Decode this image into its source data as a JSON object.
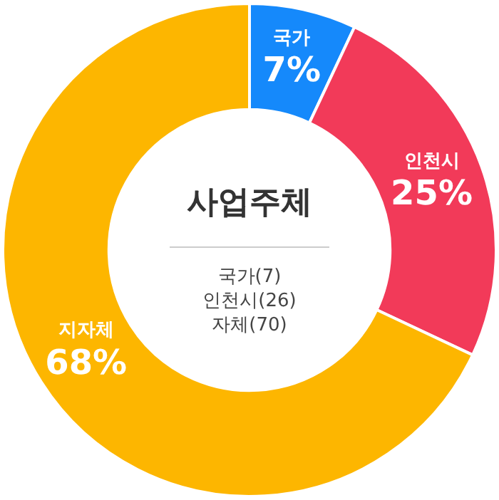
{
  "chart_data": {
    "type": "donut",
    "title": "사업주체",
    "categories": [
      "국가",
      "인천시",
      "지자체"
    ],
    "values": [
      7,
      25,
      68
    ],
    "colors": [
      "#1589fb",
      "#f23a59",
      "#fdb600"
    ],
    "value_labels": [
      "7%",
      "25%",
      "68%"
    ],
    "annotations": [
      "국가(7)",
      "인천시(26)",
      "자체(70)"
    ],
    "legend": false
  }
}
